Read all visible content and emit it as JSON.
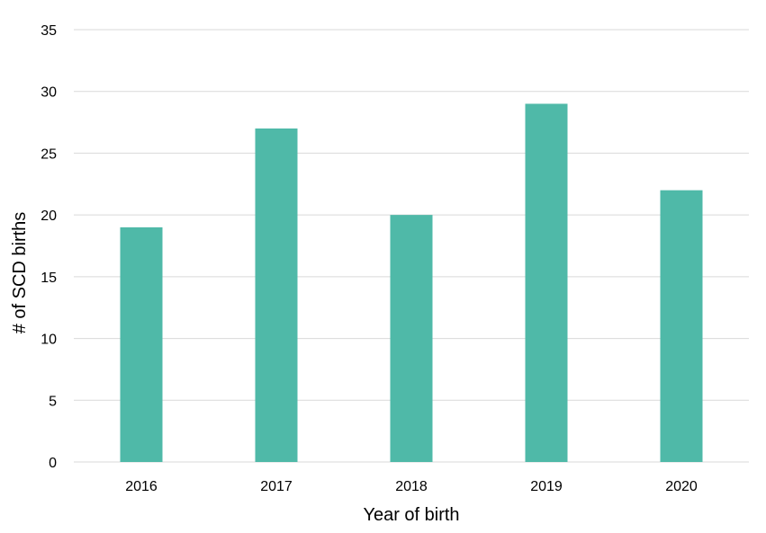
{
  "chart_data": {
    "type": "bar",
    "categories": [
      "2016",
      "2017",
      "2018",
      "2019",
      "2020"
    ],
    "series": [
      {
        "values": [
          19,
          27,
          20,
          29,
          22
        ]
      }
    ],
    "xlabel": "Year of birth",
    "ylabel": "# of SCD births",
    "ylim": [
      0,
      35
    ],
    "yticks": [
      "0",
      "5",
      "10",
      "15",
      "20",
      "25",
      "30",
      "35"
    ],
    "grid": true,
    "legend": "none",
    "bar_color": "#4fb9a8"
  }
}
